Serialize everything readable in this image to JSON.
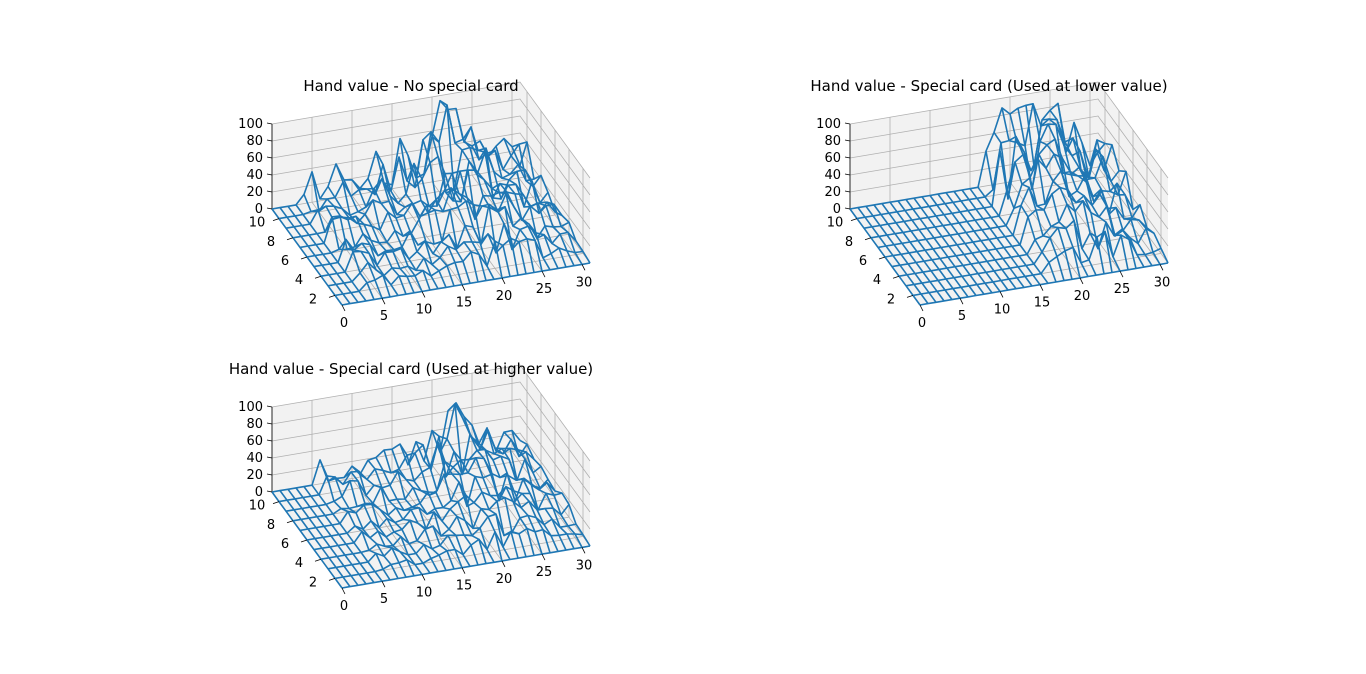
{
  "figure": {
    "background": "#ffffff",
    "pane_color": "#f2f2f2",
    "grid_color": "#b0b0b0",
    "line_color": "#1f77b4"
  },
  "chart_data": [
    {
      "type": "wireframe3d",
      "title": "Hand value - No special card",
      "x_ticks": [
        "0",
        "5",
        "10",
        "15",
        "20",
        "25",
        "30"
      ],
      "y_ticks": [
        "2",
        "4",
        "6",
        "8",
        "10"
      ],
      "z_ticks": [
        "0",
        "20",
        "40",
        "60",
        "80",
        "100"
      ],
      "xlim": [
        0,
        31
      ],
      "ylim": [
        1,
        11
      ],
      "zlim": [
        0,
        100
      ],
      "surface": {
        "x_count": 32,
        "y_values": [
          1,
          2,
          3,
          4,
          5,
          6,
          7,
          8,
          9,
          10,
          11
        ],
        "active_from_x": 4,
        "peak_x": 21,
        "peak_height": 100,
        "noise_amplitude": 45,
        "seed": 11
      }
    },
    {
      "type": "wireframe3d",
      "title": "Hand value - Special card (Used at lower value)",
      "x_ticks": [
        "0",
        "5",
        "10",
        "15",
        "20",
        "25",
        "30"
      ],
      "y_ticks": [
        "2",
        "4",
        "6",
        "8",
        "10"
      ],
      "z_ticks": [
        "0",
        "20",
        "40",
        "60",
        "80",
        "100"
      ],
      "xlim": [
        0,
        31
      ],
      "ylim": [
        1,
        11
      ],
      "zlim": [
        0,
        100
      ],
      "surface": {
        "x_count": 32,
        "y_values": [
          1,
          2,
          3,
          4,
          5,
          6,
          7,
          8,
          9,
          10,
          11
        ],
        "active_from_x": 17,
        "peak_x": 22,
        "peak_height": 100,
        "noise_amplitude": 55,
        "seed": 29
      }
    },
    {
      "type": "wireframe3d",
      "title": "Hand value - Special card (Used at higher value)",
      "x_ticks": [
        "0",
        "5",
        "10",
        "15",
        "20",
        "25",
        "30"
      ],
      "y_ticks": [
        "2",
        "4",
        "6",
        "8",
        "10"
      ],
      "z_ticks": [
        "0",
        "20",
        "40",
        "60",
        "80",
        "100"
      ],
      "xlim": [
        0,
        31
      ],
      "ylim": [
        1,
        11
      ],
      "zlim": [
        0,
        100
      ],
      "surface": {
        "x_count": 32,
        "y_values": [
          1,
          2,
          3,
          4,
          5,
          6,
          7,
          8,
          9,
          10,
          11
        ],
        "active_from_x": 6,
        "peak_x": 22,
        "peak_height": 80,
        "noise_amplitude": 30,
        "seed": 47
      }
    }
  ]
}
